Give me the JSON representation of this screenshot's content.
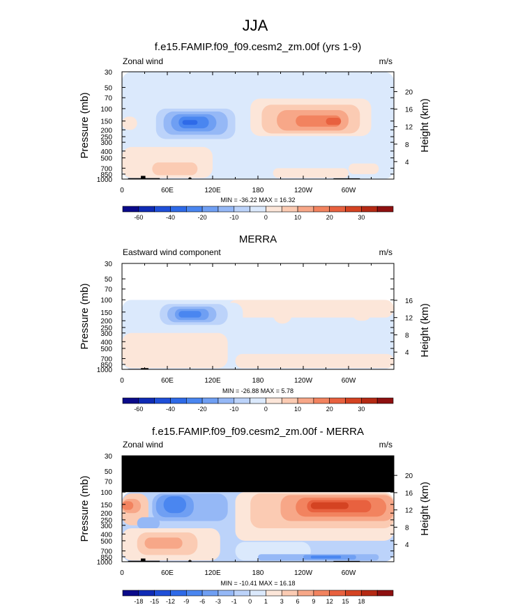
{
  "figure_title": "JJA",
  "chart_data": [
    {
      "type": "heatmap",
      "title": "f.e15.FAMIP.f09_f09.cesm2_zm.00f (yrs 1-9)",
      "left_label": "Zonal wind",
      "units": "m/s",
      "ylabel": "Pressure (mb)",
      "ylabel_right": "Height (km)",
      "x_ticks": [
        "0",
        "60E",
        "120E",
        "180",
        "120W",
        "60W"
      ],
      "x_tick_lon": [
        0,
        60,
        120,
        180,
        240,
        300
      ],
      "xlim": [
        0,
        360
      ],
      "y_ticks": [
        "30",
        "50",
        "70",
        "100",
        "150",
        "200",
        "250",
        "300",
        "400",
        "500",
        "700",
        "850",
        "1000"
      ],
      "y_tick_p": [
        30,
        50,
        70,
        100,
        150,
        200,
        250,
        300,
        400,
        500,
        700,
        850,
        1000
      ],
      "ylim": [
        1000,
        30
      ],
      "y_scale": "log",
      "right_ticks": [
        "4",
        "8",
        "12",
        "16",
        "20"
      ],
      "right_tick_km": [
        4,
        8,
        12,
        16,
        20
      ],
      "stats": "MIN = -36.22  MAX = 16.32",
      "min": -36.22,
      "max": 16.32,
      "colorbar_labels": [
        "-60",
        "-40",
        "-20",
        "-10",
        "0",
        "10",
        "20",
        "30"
      ],
      "colorbar_label_levels": [
        -60,
        -40,
        -20,
        -10,
        0,
        10,
        20,
        30
      ],
      "levels": [
        -70,
        -60,
        -50,
        -40,
        -30,
        -20,
        -15,
        -10,
        -5,
        0,
        5,
        10,
        15,
        20,
        25,
        30,
        35
      ],
      "colors": [
        "#0a0a8a",
        "#0f2bb5",
        "#1f4fd8",
        "#2e6ae8",
        "#4a86f0",
        "#6f9ff3",
        "#95b8f6",
        "#bcd3fa",
        "#dbe9fc",
        "#fce6d9",
        "#fbcbb3",
        "#f7a788",
        "#f2835f",
        "#e8613f",
        "#d44322",
        "#b52a14",
        "#8e1010"
      ],
      "missing_above_p": null,
      "cells": [
        {
          "lon": [
            0,
            360
          ],
          "p": [
            30,
            1000
          ],
          "v": -3
        },
        {
          "lon": [
            0,
            20
          ],
          "p": [
            130,
            200
          ],
          "v": 2
        },
        {
          "lon": [
            45,
            150
          ],
          "p": [
            100,
            270
          ],
          "v": -6
        },
        {
          "lon": [
            55,
            140
          ],
          "p": [
            110,
            235
          ],
          "v": -12
        },
        {
          "lon": [
            65,
            125
          ],
          "p": [
            120,
            210
          ],
          "v": -17
        },
        {
          "lon": [
            75,
            115
          ],
          "p": [
            130,
            190
          ],
          "v": -22
        },
        {
          "lon": [
            80,
            105
          ],
          "p": [
            140,
            175
          ],
          "v": -27
        },
        {
          "lon": [
            80,
            100
          ],
          "p": [
            145,
            170
          ],
          "v": -34
        },
        {
          "lon": [
            25,
            100
          ],
          "p": [
            290,
            500
          ],
          "v": -3
        },
        {
          "lon": [
            0,
            120
          ],
          "p": [
            350,
            960
          ],
          "v": 2
        },
        {
          "lon": [
            40,
            100
          ],
          "p": [
            580,
            880
          ],
          "v": 7
        },
        {
          "lon": [
            170,
            330
          ],
          "p": [
            72,
            245
          ],
          "v": 3
        },
        {
          "lon": [
            185,
            315
          ],
          "p": [
            88,
            225
          ],
          "v": 7
        },
        {
          "lon": [
            205,
            300
          ],
          "p": [
            105,
            205
          ],
          "v": 12
        },
        {
          "lon": [
            230,
            290
          ],
          "p": [
            125,
            180
          ],
          "v": 17
        },
        {
          "lon": [
            270,
            290
          ],
          "p": [
            135,
            170
          ],
          "v": 22
        },
        {
          "lon": [
            200,
            300
          ],
          "p": [
            700,
            960
          ],
          "v": 2
        },
        {
          "lon": [
            300,
            340
          ],
          "p": [
            600,
            850
          ],
          "v": 2
        }
      ],
      "terrain": [
        {
          "lon": [
            8,
            50
          ],
          "p_top": 970
        },
        {
          "lon": [
            25,
            31
          ],
          "p_top": 900
        },
        {
          "lon": [
            88,
            92
          ],
          "p_top": 960
        },
        {
          "lon": [
            280,
            315
          ],
          "p_top": 975
        }
      ]
    },
    {
      "type": "heatmap",
      "title": "MERRA",
      "left_label": "Eastward wind component",
      "units": "m/s",
      "ylabel": "Pressure (mb)",
      "ylabel_right": "Height (km)",
      "x_ticks": [
        "0",
        "60E",
        "120E",
        "180",
        "120W",
        "60W"
      ],
      "x_tick_lon": [
        0,
        60,
        120,
        180,
        240,
        300
      ],
      "xlim": [
        0,
        360
      ],
      "y_ticks": [
        "30",
        "50",
        "70",
        "100",
        "150",
        "200",
        "250",
        "300",
        "400",
        "500",
        "700",
        "850",
        "1000"
      ],
      "y_tick_p": [
        30,
        50,
        70,
        100,
        150,
        200,
        250,
        300,
        400,
        500,
        700,
        850,
        1000
      ],
      "ylim": [
        1000,
        30
      ],
      "y_scale": "log",
      "right_ticks": [
        "4",
        "8",
        "12",
        "16"
      ],
      "right_tick_km": [
        4,
        8,
        12,
        16
      ],
      "stats": "MIN = -26.88  MAX =  5.78",
      "min": -26.88,
      "max": 5.78,
      "colorbar_labels": [
        "-60",
        "-40",
        "-20",
        "-10",
        "0",
        "10",
        "20",
        "30"
      ],
      "colorbar_label_levels": [
        -60,
        -40,
        -20,
        -10,
        0,
        10,
        20,
        30
      ],
      "levels": [
        -70,
        -60,
        -50,
        -40,
        -30,
        -20,
        -15,
        -10,
        -5,
        0,
        5,
        10,
        15,
        20,
        25,
        30,
        35
      ],
      "colors": [
        "#0a0a8a",
        "#0f2bb5",
        "#1f4fd8",
        "#2e6ae8",
        "#4a86f0",
        "#6f9ff3",
        "#95b8f6",
        "#bcd3fa",
        "#dbe9fc",
        "#fce6d9",
        "#fbcbb3",
        "#f7a788",
        "#f2835f",
        "#e8613f",
        "#d44322",
        "#b52a14",
        "#8e1010"
      ],
      "missing_above_p": 100,
      "cells": [
        {
          "lon": [
            0,
            360
          ],
          "p": [
            100,
            1000
          ],
          "v": -3
        },
        {
          "lon": [
            140,
            360
          ],
          "p": [
            100,
            180
          ],
          "v": 2
        },
        {
          "lon": [
            200,
            225
          ],
          "p": [
            120,
            220
          ],
          "v": 4
        },
        {
          "lon": [
            305,
            330
          ],
          "p": [
            120,
            200
          ],
          "v": 4
        },
        {
          "lon": [
            0,
            140
          ],
          "p": [
            300,
            960
          ],
          "v": 2
        },
        {
          "lon": [
            150,
            360
          ],
          "p": [
            600,
            960
          ],
          "v": 2
        },
        {
          "lon": [
            30,
            160
          ],
          "p": [
            110,
            260
          ],
          "v": -3
        },
        {
          "lon": [
            50,
            140
          ],
          "p": [
            115,
            230
          ],
          "v": -8
        },
        {
          "lon": [
            60,
            125
          ],
          "p": [
            125,
            210
          ],
          "v": -13
        },
        {
          "lon": [
            70,
            115
          ],
          "p": [
            135,
            195
          ],
          "v": -18
        },
        {
          "lon": [
            75,
            105
          ],
          "p": [
            145,
            180
          ],
          "v": -23
        }
      ],
      "terrain": [
        {
          "lon": [
            8,
            35
          ],
          "p_top": 985
        },
        {
          "lon": [
            25,
            35
          ],
          "p_top": 960
        }
      ]
    },
    {
      "type": "heatmap",
      "title": "f.e15.FAMIP.f09_f09.cesm2_zm.00f - MERRA",
      "left_label": "Zonal wind",
      "units": "m/s",
      "ylabel": "Pressure (mb)",
      "ylabel_right": "Height (km)",
      "x_ticks": [
        "0",
        "60E",
        "120E",
        "180",
        "120W",
        "60W"
      ],
      "x_tick_lon": [
        0,
        60,
        120,
        180,
        240,
        300
      ],
      "xlim": [
        0,
        360
      ],
      "y_ticks": [
        "30",
        "50",
        "70",
        "100",
        "150",
        "200",
        "250",
        "300",
        "400",
        "500",
        "700",
        "850",
        "1000"
      ],
      "y_tick_p": [
        30,
        50,
        70,
        100,
        150,
        200,
        250,
        300,
        400,
        500,
        700,
        850,
        1000
      ],
      "ylim": [
        1000,
        30
      ],
      "y_scale": "log",
      "right_ticks": [
        "4",
        "8",
        "12",
        "16",
        "20"
      ],
      "right_tick_km": [
        4,
        8,
        12,
        16,
        20
      ],
      "stats": "MIN = -10.41  MAX = 16.18",
      "min": -10.41,
      "max": 16.18,
      "colorbar_labels": [
        "-18",
        "-15",
        "-12",
        "-9",
        "-6",
        "-3",
        "-1",
        "0",
        "1",
        "3",
        "6",
        "9",
        "12",
        "15",
        "18"
      ],
      "colorbar_label_levels": [
        -18,
        -15,
        -12,
        -9,
        -6,
        -3,
        -1,
        0,
        1,
        3,
        6,
        9,
        12,
        15,
        18
      ],
      "levels": [
        -21,
        -18,
        -15,
        -12,
        -9,
        -6,
        -3,
        -1,
        0,
        1,
        3,
        6,
        9,
        12,
        15,
        18,
        21
      ],
      "colors": [
        "#0a0a8a",
        "#0f2bb5",
        "#1f4fd8",
        "#2e6ae8",
        "#4a86f0",
        "#6f9ff3",
        "#95b8f6",
        "#bcd3fa",
        "#dbe9fc",
        "#fce6d9",
        "#fbcbb3",
        "#f7a788",
        "#f2835f",
        "#e8613f",
        "#d44322",
        "#b52a14",
        "#8e1010"
      ],
      "missing_above_p": 100,
      "cells": [
        {
          "lon": [
            0,
            360
          ],
          "p": [
            100,
            1000
          ],
          "v": -0.5
        },
        {
          "lon": [
            0,
            35
          ],
          "p": [
            105,
            300
          ],
          "v": 4
        },
        {
          "lon": [
            0,
            25
          ],
          "p": [
            125,
            200
          ],
          "v": 8
        },
        {
          "lon": [
            0,
            15
          ],
          "p": [
            135,
            180
          ],
          "v": 11
        },
        {
          "lon": [
            40,
            140
          ],
          "p": [
            105,
            260
          ],
          "v": -2
        },
        {
          "lon": [
            45,
            95
          ],
          "p": [
            110,
            230
          ],
          "v": -4
        },
        {
          "lon": [
            55,
            85
          ],
          "p": [
            115,
            200
          ],
          "v": -7
        },
        {
          "lon": [
            20,
            50
          ],
          "p": [
            230,
            340
          ],
          "v": -2
        },
        {
          "lon": [
            0,
            130
          ],
          "p": [
            330,
            960
          ],
          "v": 2
        },
        {
          "lon": [
            20,
            100
          ],
          "p": [
            380,
            800
          ],
          "v": 4
        },
        {
          "lon": [
            30,
            80
          ],
          "p": [
            450,
            650
          ],
          "v": 7
        },
        {
          "lon": [
            150,
            360
          ],
          "p": [
            100,
            500
          ],
          "v": 2
        },
        {
          "lon": [
            170,
            360
          ],
          "p": [
            105,
            330
          ],
          "v": 4
        },
        {
          "lon": [
            210,
            360
          ],
          "p": [
            110,
            260
          ],
          "v": 7
        },
        {
          "lon": [
            230,
            350
          ],
          "p": [
            120,
            225
          ],
          "v": 10
        },
        {
          "lon": [
            245,
            330
          ],
          "p": [
            130,
            195
          ],
          "v": 13
        },
        {
          "lon": [
            250,
            300
          ],
          "p": [
            140,
            175
          ],
          "v": 16
        },
        {
          "lon": [
            150,
            250
          ],
          "p": [
            520,
            960
          ],
          "v": 0.5
        },
        {
          "lon": [
            180,
            340
          ],
          "p": [
            780,
            960
          ],
          "v": -2
        },
        {
          "lon": [
            240,
            310
          ],
          "p": [
            800,
            930
          ],
          "v": -4
        },
        {
          "lon": [
            250,
            290
          ],
          "p": [
            820,
            900
          ],
          "v": -7
        }
      ],
      "terrain": [
        {
          "lon": [
            8,
            50
          ],
          "p_top": 970
        },
        {
          "lon": [
            25,
            31
          ],
          "p_top": 900
        },
        {
          "lon": [
            88,
            92
          ],
          "p_top": 960
        },
        {
          "lon": [
            280,
            315
          ],
          "p_top": 975
        }
      ]
    }
  ]
}
